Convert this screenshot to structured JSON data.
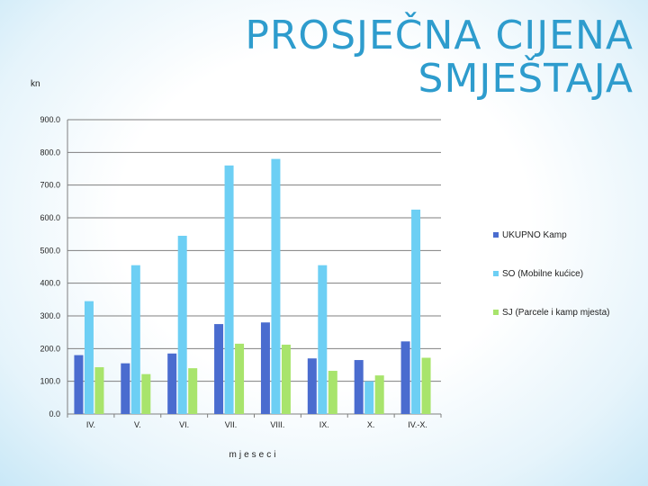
{
  "title_line1": "PROSJEČNA CIJENA",
  "title_line2": "SMJEŠTAJA",
  "chart_data": {
    "type": "bar",
    "ylabel": "kn",
    "xlabel": "mjeseci",
    "ylim": [
      0,
      900
    ],
    "yticks": [
      "0.0",
      "100.0",
      "200.0",
      "300.0",
      "400.0",
      "500.0",
      "600.0",
      "700.0",
      "800.0",
      "900.0"
    ],
    "grid": true,
    "legend_position": "right",
    "categories": [
      "IV.",
      "V.",
      "VI.",
      "VII.",
      "VIII.",
      "IX.",
      "X.",
      "IV.-X."
    ],
    "series": [
      {
        "name": "UKUPNO Kamp",
        "color": "#4a6ccf",
        "values": [
          180,
          155,
          185,
          275,
          280,
          170,
          165,
          222
        ]
      },
      {
        "name": "SO (Mobilne kućice)",
        "color": "#6dcff4",
        "values": [
          345,
          455,
          545,
          760,
          780,
          455,
          100,
          625
        ]
      },
      {
        "name": "SJ (Parcele i kamp mjesta)",
        "color": "#a8e46c",
        "values": [
          143,
          122,
          140,
          215,
          212,
          132,
          118,
          172
        ]
      }
    ]
  }
}
